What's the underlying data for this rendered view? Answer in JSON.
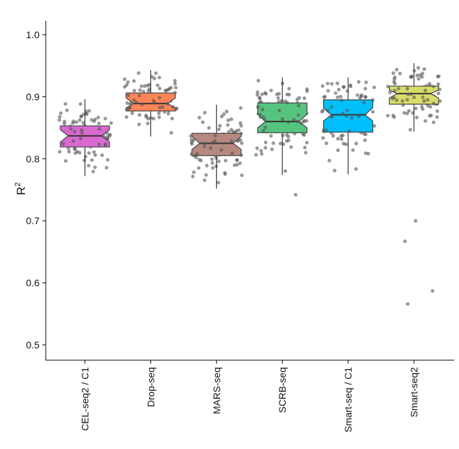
{
  "chart_data": {
    "type": "boxplot",
    "subtype": "notched boxplot with jittered points",
    "ylabel": "R",
    "ylabel_superscript": "2",
    "xlabel": "",
    "ylim": [
      0.47,
      1.03
    ],
    "yticks": [
      "0.5",
      "0.6",
      "0.7",
      "0.8",
      "0.9",
      "1.0"
    ],
    "grid": false,
    "legend": "none",
    "categories": [
      "CEL-seq2 / C1",
      "Drop-seq",
      "MARS-seq",
      "SCRB-seq",
      "Smart-seq / C1",
      "Smart-seq2"
    ],
    "boxes": [
      {
        "label": "CEL-seq2 / C1",
        "color": "#D86ACF",
        "whisker_low": 0.772,
        "q1": 0.819,
        "median": 0.837,
        "q3": 0.853,
        "whisker_high": 0.896,
        "notch": [
          0.827,
          0.847
        ],
        "outliers": []
      },
      {
        "label": "Drop-seq",
        "color": "#FF8557",
        "whisker_low": 0.836,
        "q1": 0.877,
        "median": 0.889,
        "q3": 0.906,
        "whisker_high": 0.943,
        "notch": [
          0.882,
          0.898
        ],
        "outliers": []
      },
      {
        "label": "MARS-seq",
        "color": "#B5897F",
        "whisker_low": 0.752,
        "q1": 0.805,
        "median": 0.825,
        "q3": 0.841,
        "whisker_high": 0.887,
        "notch": [
          0.815,
          0.836
        ],
        "outliers": []
      },
      {
        "label": "SCRB-seq",
        "color": "#55C47E",
        "whisker_low": 0.774,
        "q1": 0.842,
        "median": 0.86,
        "q3": 0.89,
        "whisker_high": 0.931,
        "notch": [
          0.85,
          0.872
        ],
        "outliers": [
          0.742
        ]
      },
      {
        "label": "Smart-seq / C1",
        "color": "#00BFFA",
        "whisker_low": 0.775,
        "q1": 0.843,
        "median": 0.871,
        "q3": 0.895,
        "whisker_high": 0.931,
        "notch": [
          0.861,
          0.882
        ],
        "outliers": []
      },
      {
        "label": "Smart-seq2",
        "color": "#D8DD6A",
        "whisker_low": 0.844,
        "q1": 0.888,
        "median": 0.905,
        "q3": 0.917,
        "whisker_high": 0.954,
        "notch": [
          0.898,
          0.911
        ],
        "outliers": [
          0.7,
          0.667,
          0.587,
          0.566
        ]
      }
    ],
    "point_color": "#555555"
  }
}
